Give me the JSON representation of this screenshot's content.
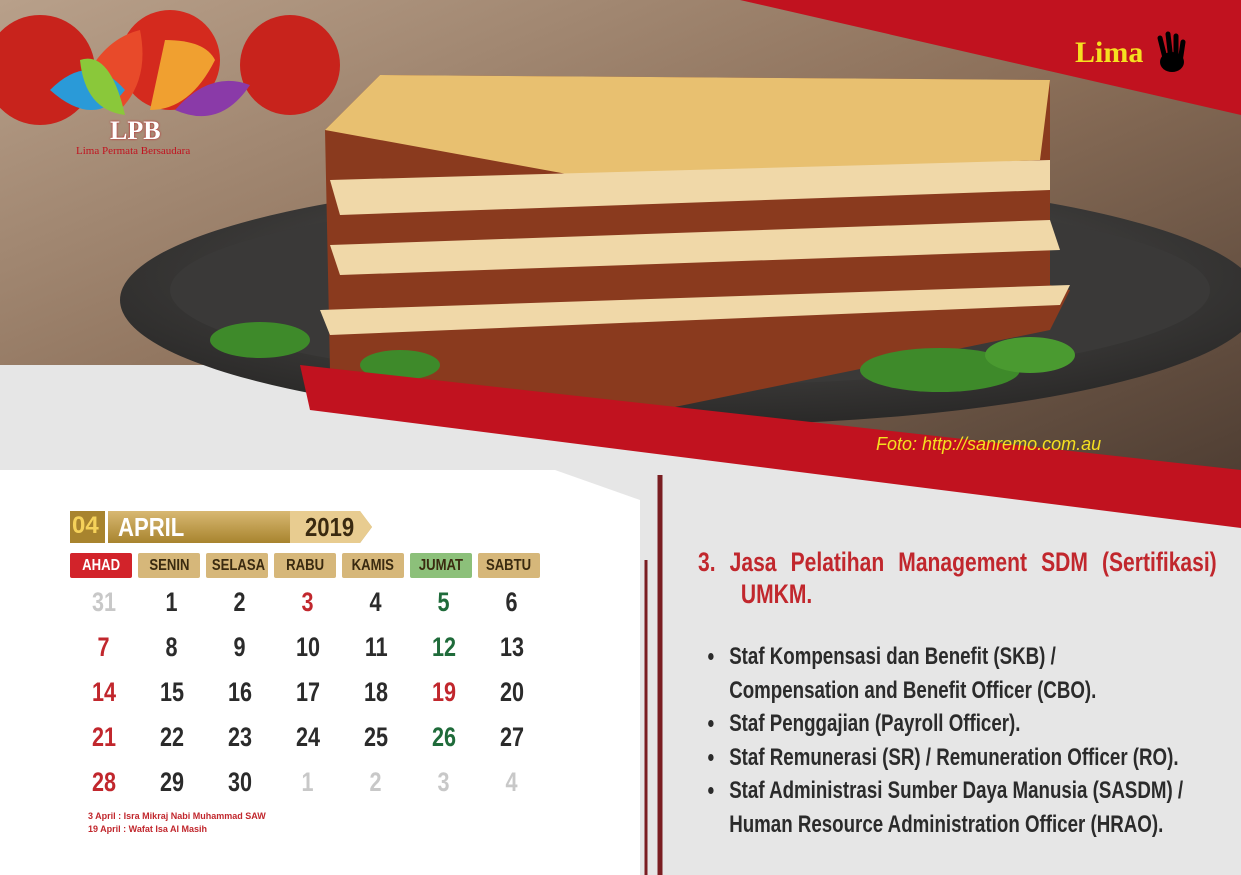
{
  "logo": {
    "mark": "LPB",
    "name": "Lima Permata Bersaudara"
  },
  "corner_label": "Lima",
  "photo_credit": "Foto: http://sanremo.com.au",
  "calendar": {
    "month_number": "04",
    "month": "APRIL",
    "year": "2019",
    "weekdays": [
      {
        "label": "AHAD",
        "color": "#d2232a"
      },
      {
        "label": "SENIN",
        "color": "#d6b77a"
      },
      {
        "label": "SELASA",
        "color": "#d6b77a"
      },
      {
        "label": "RABU",
        "color": "#d6b77a"
      },
      {
        "label": "KAMIS",
        "color": "#d6b77a"
      },
      {
        "label": "JUMAT",
        "color": "#8cc07a"
      },
      {
        "label": "SABTU",
        "color": "#d6b77a"
      }
    ],
    "weeks": [
      [
        {
          "day": 31,
          "color": "#c8c8c8"
        },
        {
          "day": 1,
          "color": "#2b2b2b"
        },
        {
          "day": 2,
          "color": "#2b2b2b"
        },
        {
          "day": 3,
          "color": "#c1272d"
        },
        {
          "day": 4,
          "color": "#2b2b2b"
        },
        {
          "day": 5,
          "color": "#1f6b3a"
        },
        {
          "day": 6,
          "color": "#2b2b2b"
        }
      ],
      [
        {
          "day": 7,
          "color": "#c1272d"
        },
        {
          "day": 8,
          "color": "#2b2b2b"
        },
        {
          "day": 9,
          "color": "#2b2b2b"
        },
        {
          "day": 10,
          "color": "#2b2b2b"
        },
        {
          "day": 11,
          "color": "#2b2b2b"
        },
        {
          "day": 12,
          "color": "#1f6b3a"
        },
        {
          "day": 13,
          "color": "#2b2b2b"
        }
      ],
      [
        {
          "day": 14,
          "color": "#c1272d"
        },
        {
          "day": 15,
          "color": "#2b2b2b"
        },
        {
          "day": 16,
          "color": "#2b2b2b"
        },
        {
          "day": 17,
          "color": "#2b2b2b"
        },
        {
          "day": 18,
          "color": "#2b2b2b"
        },
        {
          "day": 19,
          "color": "#c1272d"
        },
        {
          "day": 20,
          "color": "#2b2b2b"
        }
      ],
      [
        {
          "day": 21,
          "color": "#c1272d"
        },
        {
          "day": 22,
          "color": "#2b2b2b"
        },
        {
          "day": 23,
          "color": "#2b2b2b"
        },
        {
          "day": 24,
          "color": "#2b2b2b"
        },
        {
          "day": 25,
          "color": "#2b2b2b"
        },
        {
          "day": 26,
          "color": "#1f6b3a"
        },
        {
          "day": 27,
          "color": "#2b2b2b"
        }
      ],
      [
        {
          "day": 28,
          "color": "#c1272d"
        },
        {
          "day": 29,
          "color": "#2b2b2b"
        },
        {
          "day": 30,
          "color": "#2b2b2b"
        },
        {
          "day": 1,
          "color": "#c8c8c8"
        },
        {
          "day": 2,
          "color": "#c8c8c8"
        },
        {
          "day": 3,
          "color": "#c8c8c8"
        },
        {
          "day": 4,
          "color": "#c8c8c8"
        }
      ]
    ],
    "notes": [
      "3 April : Isra Mikraj Nabi Muhammad SAW",
      "19 April : Wafat Isa Al Masih"
    ]
  },
  "content": {
    "title": "3. Jasa Pelatihan Management SDM (Sertifikasi) UMKM.",
    "bullets": [
      "Staf Kompensasi dan Benefit (SKB) / Compensation and Benefit Officer (CBO).",
      "Staf Penggajian (Payroll Officer).",
      "Staf Remunerasi (SR) / Remuneration Officer (RO).",
      "Staf Administrasi Sumber Daya Manusia (SASDM) / Human Resource Administration Officer (HRAO)."
    ]
  }
}
